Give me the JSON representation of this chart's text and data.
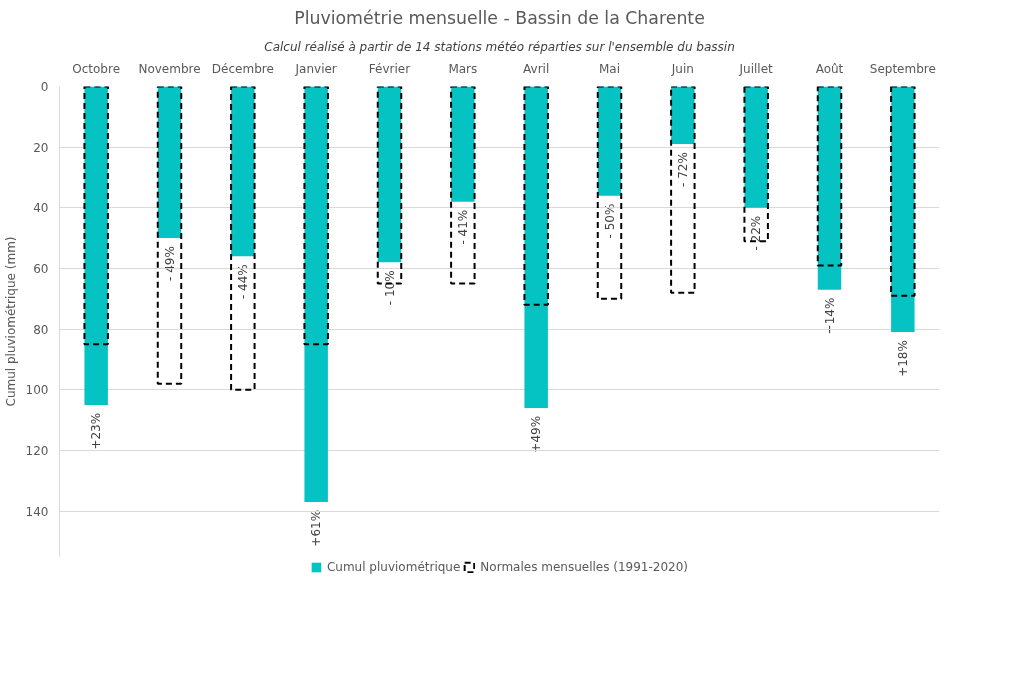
{
  "chart_data": {
    "type": "bar",
    "title": "Pluviométrie mensuelle - Bassin de la Charente",
    "subtitle": "Calcul réalisé à partir de 14 stations météo réparties sur l'ensemble du bassin",
    "ylabel": "Cumul pluviométrique (mm)",
    "categories": [
      "Octobre",
      "Novembre",
      "Décembre",
      "Janvier",
      "Février",
      "Mars",
      "Avril",
      "Mai",
      "Juin",
      "Juillet",
      "Août",
      "Septembre"
    ],
    "series": [
      {
        "name": "Cumul pluviométrique",
        "color": "#05c3c3",
        "values": [
          105,
          50,
          56,
          137,
          58,
          38,
          106,
          36,
          19,
          40,
          67,
          81
        ]
      },
      {
        "name": "Normales mensuelles (1991-2020)",
        "color": "#000000",
        "line_style": "dashed",
        "values": [
          85,
          98,
          100,
          85,
          65,
          65,
          72,
          70,
          68,
          51,
          59,
          69
        ]
      }
    ],
    "annotations": [
      {
        "text": "+23%",
        "x": "Octobre",
        "y": 105
      },
      {
        "text": "- 49%",
        "x": "Novembre",
        "y": 50
      },
      {
        "text": "- 44%",
        "x": "Décembre",
        "y": 56
      },
      {
        "text": "+61%",
        "x": "Janvier",
        "y": 137
      },
      {
        "text": "- 10%",
        "x": "Février",
        "y": 58
      },
      {
        "text": "- 41%",
        "x": "Mars",
        "y": 38
      },
      {
        "text": "+49%",
        "x": "Avril",
        "y": 106
      },
      {
        "text": "- 50%",
        "x": "Mai",
        "y": 36
      },
      {
        "text": "- 72%",
        "x": "Juin",
        "y": 19
      },
      {
        "text": "- 22%",
        "x": "Juillet",
        "y": 40
      },
      {
        "text": "+14%",
        "x": "Août",
        "y": 67
      },
      {
        "text": "+18%",
        "x": "Septembre",
        "y": 81
      }
    ],
    "ylim": [
      155,
      0
    ],
    "yticks": [
      0,
      20,
      40,
      60,
      80,
      100,
      120,
      140
    ],
    "grid": "y",
    "legend": "bottom"
  }
}
